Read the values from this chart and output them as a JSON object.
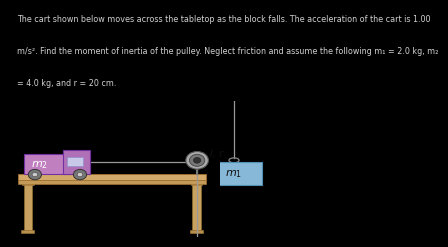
{
  "background_color": "#000000",
  "text_color": "#d0d0d0",
  "problem_line1": "The cart shown below moves across the tabletop as the block falls. The acceleration of the cart is 1.00",
  "problem_line2": "m/s². Find the moment of inertia of the pulley. Neglect friction and assume the following m₁ = 2.0 kg, m₂",
  "problem_line3": "= 4.0 kg, and r = 20 cm.",
  "diagram_bg": "#ffffff",
  "table_top_color": "#d4aa6a",
  "table_mid_color": "#c49a58",
  "table_leg_color": "#c8a060",
  "table_foot_color": "#b89050",
  "cart_body_color": "#c080c0",
  "cart_window_color": "#c8c8e8",
  "wheel_outer": "#777777",
  "wheel_inner": "#cccccc",
  "pulley_outer": "#999999",
  "pulley_mid": "#666666",
  "pulley_hub": "#333333",
  "block_color": "#88b8d8",
  "block_edge": "#5090b0",
  "rope_color": "#999999",
  "label_dark": "#111111",
  "label_white": "#ffffff",
  "label_gray": "#cccccc"
}
